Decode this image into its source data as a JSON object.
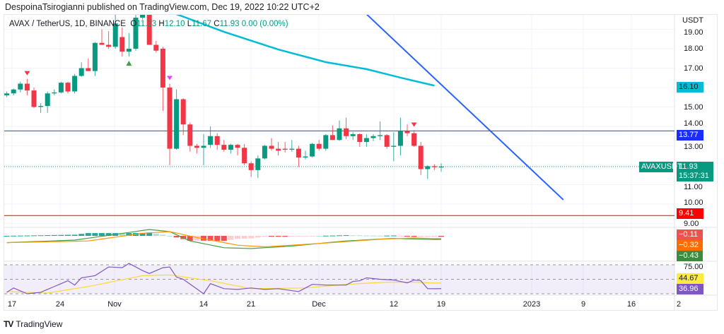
{
  "header": {
    "published": "DespoinaTsirogianni published on TradingView.com, Dec 19, 2022 10:22 UTC+2"
  },
  "legend": {
    "symbol": "AVAX / TetherUS, 1D, BINANCE",
    "o_label": "O",
    "o": "11.93",
    "h_label": "H",
    "h": "12.10",
    "l_label": "L",
    "l": "11.67",
    "c_label": "C",
    "c": "11.93",
    "change": "0.00 (0.00%)"
  },
  "price_scale": {
    "currency": "USDT",
    "ticks": [
      "19.00",
      "18.00",
      "17.00",
      "15.00",
      "14.00",
      "13.00",
      "11.00",
      "10.00",
      "9.00"
    ],
    "ma_badge": "16.10",
    "level_badge": "13.77",
    "last_price": "11.93",
    "countdown": "15:37:31",
    "symbol_tag": "AVAXUSDT",
    "support_badge": "9.41",
    "macd_badges": [
      "−0.11",
      "−0.32",
      "−0.43"
    ],
    "rsi_top_tick": "75.00",
    "rsi_badges": [
      "44.67",
      "36.96"
    ]
  },
  "time_axis": [
    "17",
    "24",
    "Nov",
    "14",
    "21",
    "Dec",
    "12",
    "19",
    "2023",
    "9",
    "16",
    "2"
  ],
  "footer": {
    "logo_mark": "TV",
    "brand": "TradingView"
  },
  "colors": {
    "up": "#089981",
    "down": "#f23645",
    "ma": "#00bcd4",
    "trend": "#2962ff",
    "level": "#2440ff",
    "support": "#ff0000",
    "macd": "#43a047",
    "signal": "#ff9800",
    "rsi": "#7e57c2",
    "rsi_ma": "#fdd835"
  },
  "chart_data": {
    "type": "candlestick",
    "title": "AVAX / TetherUS, 1D, BINANCE",
    "ylabel": "USDT",
    "ylim": [
      9,
      19
    ],
    "candles_ohlc": [
      [
        15.6,
        15.8,
        15.5,
        15.7
      ],
      [
        15.7,
        15.95,
        15.6,
        15.9
      ],
      [
        15.9,
        16.3,
        15.75,
        16.2
      ],
      [
        16.2,
        16.45,
        15.6,
        15.85
      ],
      [
        15.85,
        16.0,
        14.95,
        15.0
      ],
      [
        15.0,
        15.2,
        14.7,
        15.05
      ],
      [
        15.05,
        15.8,
        14.7,
        15.7
      ],
      [
        15.7,
        15.9,
        15.6,
        15.75
      ],
      [
        15.75,
        16.3,
        15.7,
        16.25
      ],
      [
        16.25,
        16.3,
        15.7,
        15.8
      ],
      [
        15.8,
        16.7,
        15.7,
        16.6
      ],
      [
        16.6,
        17.3,
        16.55,
        17.0
      ],
      [
        17.0,
        17.5,
        16.85,
        16.85
      ],
      [
        16.85,
        18.35,
        16.6,
        18.3
      ],
      [
        18.3,
        19.0,
        18.2,
        18.2
      ],
      [
        18.2,
        18.9,
        18.0,
        18.1
      ],
      [
        18.1,
        19.8,
        18.0,
        19.3
      ],
      [
        18.6,
        19.1,
        17.6,
        17.85
      ],
      [
        17.85,
        18.8,
        17.6,
        18.0
      ],
      [
        18.0,
        19.8,
        17.9,
        19.6
      ],
      [
        19.6,
        20.3,
        19.5,
        19.9
      ],
      [
        19.9,
        20.0,
        18.2,
        18.2
      ],
      [
        18.2,
        18.4,
        17.8,
        17.9
      ],
      [
        18.0,
        18.1,
        14.8,
        16.0
      ],
      [
        16.0,
        16.2,
        12.0,
        12.85
      ],
      [
        12.85,
        15.9,
        12.8,
        15.4
      ],
      [
        15.4,
        15.45,
        13.55,
        14.1
      ],
      [
        14.1,
        14.2,
        12.7,
        13.0
      ],
      [
        13.0,
        13.1,
        12.6,
        12.9
      ],
      [
        12.9,
        13.6,
        12.0,
        13.0
      ],
      [
        13.05,
        14.0,
        12.9,
        13.5
      ],
      [
        13.5,
        13.65,
        12.8,
        13.05
      ],
      [
        13.05,
        13.3,
        12.7,
        12.8
      ],
      [
        12.8,
        13.1,
        12.6,
        13.05
      ],
      [
        13.05,
        13.1,
        12.5,
        12.9
      ],
      [
        12.9,
        13.1,
        12.0,
        12.1
      ],
      [
        12.1,
        12.2,
        11.4,
        11.75
      ],
      [
        11.75,
        12.5,
        11.35,
        12.35
      ],
      [
        12.35,
        13.05,
        12.3,
        13.0
      ],
      [
        13.0,
        13.4,
        12.75,
        12.85
      ],
      [
        12.85,
        13.2,
        12.5,
        12.75
      ],
      [
        12.85,
        13.2,
        12.65,
        12.8
      ],
      [
        12.8,
        13.3,
        12.7,
        12.85
      ],
      [
        12.85,
        13.0,
        11.9,
        12.4
      ],
      [
        12.4,
        12.75,
        12.3,
        12.45
      ],
      [
        12.45,
        13.15,
        12.4,
        13.1
      ],
      [
        13.1,
        13.3,
        12.75,
        12.85
      ],
      [
        12.85,
        13.6,
        12.75,
        13.55
      ],
      [
        13.55,
        14.05,
        13.35,
        13.3
      ],
      [
        13.3,
        14.3,
        13.25,
        13.9
      ],
      [
        13.9,
        14.45,
        13.35,
        13.5
      ],
      [
        13.5,
        13.7,
        13.3,
        13.6
      ],
      [
        13.6,
        13.65,
        12.95,
        13.2
      ],
      [
        13.2,
        13.6,
        12.95,
        13.4
      ],
      [
        13.4,
        13.6,
        13.25,
        13.5
      ],
      [
        13.5,
        14.25,
        13.3,
        13.55
      ],
      [
        13.55,
        13.6,
        12.85,
        12.95
      ],
      [
        12.95,
        13.7,
        12.2,
        13.0
      ],
      [
        13.0,
        14.45,
        12.5,
        13.75
      ],
      [
        13.75,
        14.1,
        13.5,
        13.65
      ],
      [
        13.65,
        13.8,
        12.95,
        13.0
      ],
      [
        13.0,
        13.2,
        11.5,
        11.8
      ],
      [
        11.8,
        12.0,
        11.3,
        11.95
      ],
      [
        11.95,
        12.05,
        11.75,
        11.9
      ],
      [
        11.93,
        12.1,
        11.67,
        11.93
      ]
    ],
    "moving_average_points": [
      [
        25,
        19.78
      ],
      [
        32,
        18.87
      ],
      [
        40,
        17.96
      ],
      [
        47,
        17.31
      ],
      [
        53,
        16.95
      ],
      [
        58,
        16.51
      ],
      [
        63,
        16.1
      ]
    ],
    "trendline": [
      [
        53,
        19.78
      ],
      [
        82,
        10.22
      ]
    ],
    "horizontal_levels": [
      13.77,
      9.41
    ],
    "signals": [
      {
        "index": 3,
        "type": "sell",
        "color": "#f23645"
      },
      {
        "index": 18,
        "type": "buy",
        "color": "#43a047"
      },
      {
        "index": 24,
        "type": "sell",
        "color": "#e040fb"
      },
      {
        "index": 60,
        "type": "sell",
        "color": "#f23645"
      }
    ],
    "macd_line": [
      [
        0,
        -0.8
      ],
      [
        10,
        -0.5
      ],
      [
        18,
        0.4
      ],
      [
        21,
        0.75
      ],
      [
        24,
        0.5
      ],
      [
        27,
        -0.6
      ],
      [
        32,
        -1.4
      ],
      [
        36,
        -1.5
      ],
      [
        42,
        -1.2
      ],
      [
        50,
        -0.6
      ],
      [
        57,
        -0.3
      ],
      [
        63,
        -0.43
      ]
    ],
    "signal_line": [
      [
        0,
        -0.8
      ],
      [
        12,
        -0.6
      ],
      [
        20,
        0.3
      ],
      [
        24,
        0.5
      ],
      [
        28,
        -0.2
      ],
      [
        34,
        -1.1
      ],
      [
        38,
        -1.3
      ],
      [
        46,
        -0.9
      ],
      [
        55,
        -0.4
      ],
      [
        60,
        -0.25
      ],
      [
        63,
        -0.32
      ]
    ],
    "rsi": [
      [
        0,
        32
      ],
      [
        1,
        38
      ],
      [
        3,
        30
      ],
      [
        5,
        32
      ],
      [
        7,
        40
      ],
      [
        9,
        48
      ],
      [
        10,
        42
      ],
      [
        11,
        52
      ],
      [
        13,
        55
      ],
      [
        15,
        67
      ],
      [
        17,
        66
      ],
      [
        18,
        72
      ],
      [
        20,
        62
      ],
      [
        21,
        58
      ],
      [
        23,
        66
      ],
      [
        24,
        67
      ],
      [
        25,
        53
      ],
      [
        26,
        50
      ],
      [
        29,
        30
      ],
      [
        30,
        44
      ],
      [
        32,
        37
      ],
      [
        34,
        36
      ],
      [
        36,
        38
      ],
      [
        38,
        36
      ],
      [
        40,
        37
      ],
      [
        43,
        33
      ],
      [
        45,
        43
      ],
      [
        47,
        42
      ],
      [
        50,
        42
      ],
      [
        51,
        47
      ],
      [
        52,
        48
      ],
      [
        53,
        52
      ],
      [
        55,
        50
      ],
      [
        57,
        49
      ],
      [
        59,
        45
      ],
      [
        60,
        49
      ],
      [
        61,
        48
      ],
      [
        62,
        37
      ],
      [
        63,
        36.96
      ]
    ],
    "rsi_ma": [
      [
        0,
        33
      ],
      [
        6,
        31
      ],
      [
        12,
        40
      ],
      [
        20,
        55
      ],
      [
        24,
        56
      ],
      [
        30,
        48
      ],
      [
        36,
        37
      ],
      [
        44,
        38
      ],
      [
        50,
        43
      ],
      [
        56,
        46
      ],
      [
        60,
        46
      ],
      [
        63,
        44.67
      ]
    ],
    "rsi_bands": [
      70,
      50,
      30
    ]
  }
}
